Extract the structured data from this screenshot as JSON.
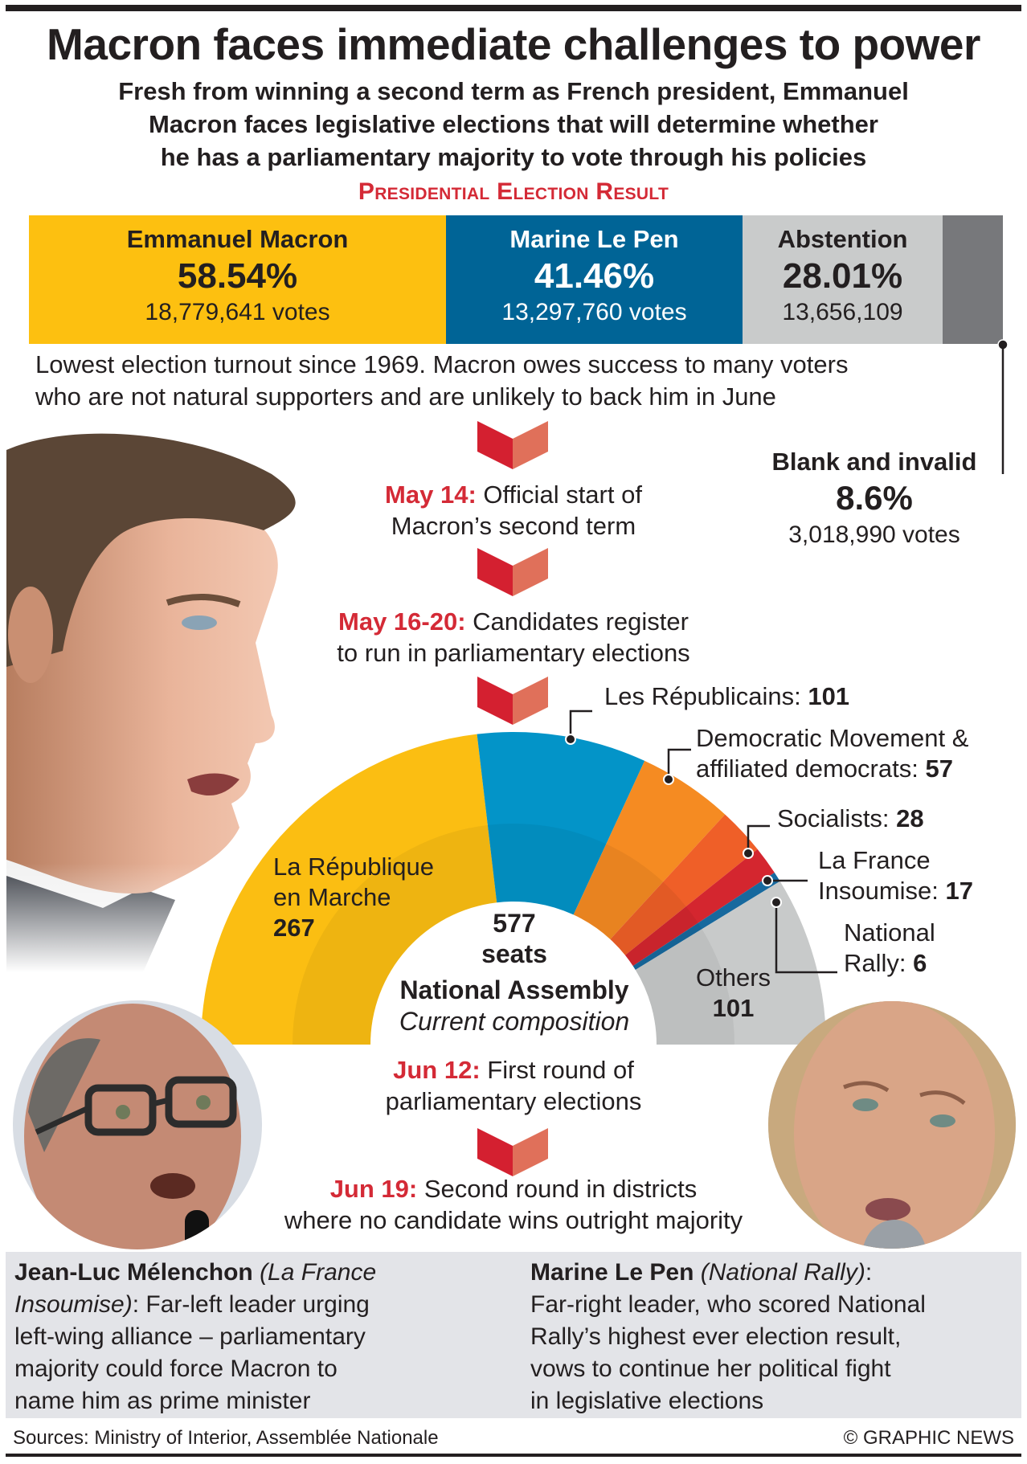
{
  "header": {
    "title": "Macron faces immediate challenges to power",
    "subtitle_lines": [
      "Fresh from winning a second term as French president, Emmanuel",
      "Macron faces legislative elections that will determine whether",
      "he has a parliamentary majority to vote through his policies"
    ],
    "section_heading": "Presidential Election Result"
  },
  "presidential_result": {
    "candidates": [
      {
        "name": "Emmanuel Macron",
        "pct": "58.54%",
        "votes": "18,779,641 votes",
        "color": "#fdc010"
      },
      {
        "name": "Marine Le Pen",
        "pct": "41.46%",
        "votes": "13,297,760 votes",
        "color": "#006496"
      },
      {
        "name": "Abstention",
        "pct": "28.01%",
        "votes": "13,656,109",
        "color": "#c9cbcb"
      }
    ],
    "blank_color": "#77787b",
    "blank": {
      "label": "Blank and invalid",
      "pct": "8.6%",
      "votes": "3,018,990 votes"
    },
    "turnout_note_lines": [
      "Lowest election turnout since 1969. Macron owes success to many voters",
      "who are not natural supporters and are unlikely to back him in June"
    ]
  },
  "timeline": [
    {
      "date": "May 14:",
      "lines": [
        " Official start of",
        "Macron’s second term"
      ]
    },
    {
      "date": "May 16-20:",
      "lines": [
        " Candidates register",
        "to run in parliamentary elections"
      ]
    },
    {
      "date": "Jun 12:",
      "lines": [
        " First round of",
        "parliamentary elections"
      ]
    },
    {
      "date": "Jun 19:",
      "lines": [
        " Second round in districts",
        "where no candidate wins outright majority"
      ]
    }
  ],
  "chart_data": {
    "type": "pie",
    "subtype": "hemicycle",
    "title": "National Assembly",
    "subtitle": "Current composition",
    "total_label": "577",
    "total_unit": "seats",
    "total": 577,
    "categories": [
      "La République en Marche",
      "Les Républicains",
      "Democratic Movement & affiliated democrats",
      "Socialists",
      "La France Insoumise",
      "National Rally",
      "Others"
    ],
    "values": [
      267,
      101,
      57,
      28,
      17,
      6,
      101
    ],
    "colors": [
      "#fbbe12",
      "#0394c8",
      "#f58b22",
      "#ef5f28",
      "#d4262f",
      "#17699e",
      "#c8caca"
    ],
    "labels": {
      "lrem": {
        "line1": "La République",
        "line2": "en Marche",
        "value": "267"
      },
      "lr": {
        "text": "Les Républicains: ",
        "value": "101"
      },
      "modem": {
        "line1": "Democratic Movement &",
        "line2": "affiliated democrats: ",
        "value": "57"
      },
      "ps": {
        "text": "Socialists: ",
        "value": "28"
      },
      "lfi": {
        "line1": "La France",
        "line2": "Insoumise: ",
        "value": "17"
      },
      "rn": {
        "line1": "National",
        "line2": "Rally: ",
        "value": "6"
      },
      "others": {
        "line1": "Others",
        "value": "101"
      }
    }
  },
  "profiles": [
    {
      "name": "Jean-Luc Mélenchon",
      "party": "(La France Insoumise)",
      "party_l1": "(La France",
      "party_l2": "Insoumise)",
      "desc_l1": ": Far-left leader urging",
      "desc_l2": "left-wing alliance – parliamentary",
      "desc_l3": "majority could force Macron to",
      "desc_l4": "name him as prime minister"
    },
    {
      "name": "Marine Le Pen",
      "party": "(National Rally)",
      "desc_l0": ":",
      "desc_l1": "Far-right leader, who scored National",
      "desc_l2": "Rally’s highest ever election result,",
      "desc_l3": "vows to continue her political fight",
      "desc_l4": "in legislative elections"
    }
  ],
  "footer": {
    "sources": "Sources: Ministry of Interior, Assemblée Nationale",
    "credit": "© GRAPHIC NEWS"
  },
  "photos": [
    {
      "subject": "Emmanuel Macron"
    },
    {
      "subject": "Jean-Luc Mélenchon"
    },
    {
      "subject": "Marine Le Pen"
    }
  ]
}
